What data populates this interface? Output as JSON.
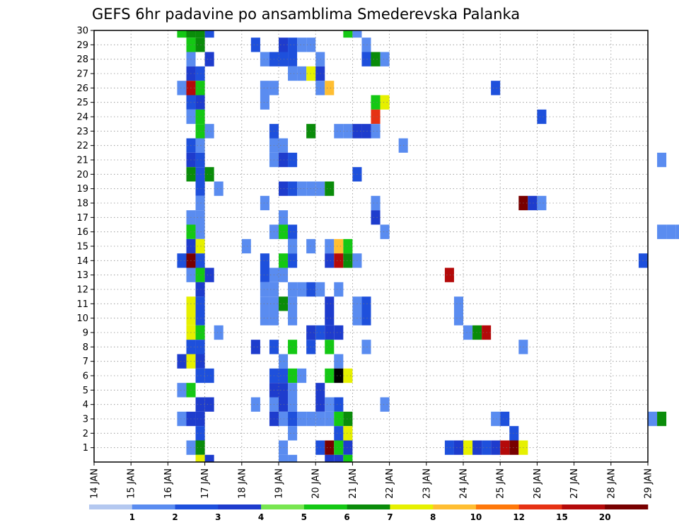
{
  "chart_data": {
    "type": "heatmap",
    "title": "GEFS 6hr padavine po ansamblima Smederevska Palanka",
    "xlabel": "",
    "ylabel": "",
    "x_ticks": [
      "14 JAN",
      "15 JAN",
      "16 JAN",
      "17 JAN",
      "18 JAN",
      "19 JAN",
      "20 JAN",
      "21 JAN",
      "22 JAN",
      "23 JAN",
      "24 JAN",
      "25 JAN",
      "26 JAN",
      "27 JAN",
      "28 JAN",
      "29 JAN"
    ],
    "y_ticks": [
      "1",
      "2",
      "3",
      "4",
      "5",
      "6",
      "7",
      "8",
      "9",
      "10",
      "11",
      "12",
      "13",
      "14",
      "15",
      "16",
      "17",
      "18",
      "19",
      "20",
      "21",
      "22",
      "23",
      "24",
      "25",
      "26",
      "27",
      "28",
      "29",
      "30"
    ],
    "x_range_days": [
      14,
      29
    ],
    "y_range": [
      0,
      30
    ],
    "grid": true,
    "colorbar": {
      "labels": [
        "1",
        "2",
        "3",
        "4",
        "5",
        "6",
        "7",
        "8",
        "10",
        "12",
        "15",
        "20"
      ],
      "colors": [
        "#b4c8f0",
        "#5a8cf0",
        "#1e50dc",
        "#1e3ccd",
        "#78e650",
        "#14c814",
        "#0a8c0a",
        "#e6f000",
        "#ffbe32",
        "#ff780a",
        "#e63214",
        "#b40a0a",
        "#780000"
      ]
    },
    "cells": [
      [
        30,
        16.5,
        6
      ],
      [
        30,
        16.75,
        6
      ],
      [
        30,
        17.0,
        2
      ],
      [
        30,
        16.25,
        5
      ],
      [
        30,
        20.75,
        5
      ],
      [
        30,
        21.0,
        1
      ],
      [
        29,
        16.5,
        5
      ],
      [
        29,
        16.75,
        6
      ],
      [
        29,
        18.25,
        2
      ],
      [
        29,
        19.0,
        3
      ],
      [
        29,
        19.25,
        2
      ],
      [
        29,
        19.5,
        1
      ],
      [
        29,
        19.75,
        1
      ],
      [
        29,
        21.25,
        1
      ],
      [
        28,
        16.5,
        1
      ],
      [
        28,
        17.0,
        3
      ],
      [
        28,
        18.5,
        1
      ],
      [
        28,
        18.75,
        2
      ],
      [
        28,
        19.0,
        2
      ],
      [
        28,
        19.25,
        2
      ],
      [
        28,
        20.0,
        1
      ],
      [
        28,
        21.25,
        2
      ],
      [
        28,
        21.5,
        6
      ],
      [
        28,
        21.75,
        1
      ],
      [
        27,
        16.5,
        3
      ],
      [
        27,
        16.75,
        2
      ],
      [
        27,
        19.25,
        1
      ],
      [
        27,
        19.5,
        1
      ],
      [
        27,
        19.75,
        7
      ],
      [
        27,
        20.0,
        3
      ],
      [
        26,
        16.25,
        1
      ],
      [
        26,
        16.5,
        11
      ],
      [
        26,
        16.75,
        5
      ],
      [
        26,
        18.5,
        1
      ],
      [
        26,
        18.75,
        1
      ],
      [
        26,
        20.0,
        1
      ],
      [
        26,
        20.25,
        8
      ],
      [
        26,
        24.75,
        2
      ],
      [
        25,
        16.5,
        2
      ],
      [
        25,
        16.75,
        3
      ],
      [
        25,
        18.5,
        1
      ],
      [
        25,
        21.5,
        5
      ],
      [
        25,
        21.75,
        7
      ],
      [
        24,
        16.5,
        1
      ],
      [
        24,
        16.75,
        5
      ],
      [
        24,
        21.5,
        10
      ],
      [
        24,
        26.0,
        2
      ],
      [
        23,
        16.75,
        5
      ],
      [
        23,
        17.0,
        1
      ],
      [
        23,
        18.75,
        2
      ],
      [
        23,
        19.75,
        6
      ],
      [
        23,
        20.5,
        1
      ],
      [
        23,
        20.75,
        1
      ],
      [
        23,
        21.0,
        3
      ],
      [
        23,
        21.25,
        3
      ],
      [
        23,
        21.5,
        1
      ],
      [
        22,
        16.5,
        2
      ],
      [
        22,
        16.75,
        1
      ],
      [
        22,
        18.75,
        1
      ],
      [
        22,
        19.0,
        1
      ],
      [
        22,
        22.25,
        1
      ],
      [
        21,
        16.5,
        3
      ],
      [
        21,
        16.75,
        2
      ],
      [
        21,
        18.75,
        1
      ],
      [
        21,
        19.0,
        3
      ],
      [
        21,
        19.25,
        2
      ],
      [
        21,
        29.25,
        1
      ],
      [
        20,
        16.5,
        6
      ],
      [
        20,
        16.75,
        2
      ],
      [
        20,
        17.0,
        6
      ],
      [
        20,
        21.0,
        2
      ],
      [
        19,
        16.75,
        2
      ],
      [
        19,
        17.25,
        1
      ],
      [
        19,
        19.0,
        3
      ],
      [
        19,
        19.25,
        2
      ],
      [
        19,
        19.5,
        1
      ],
      [
        19,
        19.75,
        1
      ],
      [
        19,
        20.0,
        1
      ],
      [
        19,
        20.25,
        6
      ],
      [
        18,
        16.75,
        1
      ],
      [
        18,
        18.5,
        1
      ],
      [
        18,
        21.5,
        1
      ],
      [
        18,
        25.5,
        12
      ],
      [
        18,
        25.75,
        3
      ],
      [
        18,
        26.0,
        1
      ],
      [
        17,
        16.5,
        1
      ],
      [
        17,
        16.75,
        1
      ],
      [
        17,
        19.0,
        1
      ],
      [
        17,
        21.5,
        3
      ],
      [
        16,
        16.5,
        5
      ],
      [
        16,
        16.75,
        1
      ],
      [
        16,
        18.75,
        1
      ],
      [
        16,
        19.0,
        5
      ],
      [
        16,
        19.25,
        2
      ],
      [
        16,
        21.75,
        1
      ],
      [
        16,
        29.25,
        1
      ],
      [
        16,
        29.5,
        1
      ],
      [
        16,
        29.75,
        1
      ],
      [
        15,
        16.5,
        3
      ],
      [
        15,
        16.75,
        7
      ],
      [
        15,
        18.0,
        1
      ],
      [
        15,
        19.25,
        1
      ],
      [
        15,
        19.75,
        1
      ],
      [
        15,
        20.25,
        1
      ],
      [
        15,
        20.5,
        8
      ],
      [
        15,
        20.75,
        5
      ],
      [
        14,
        16.25,
        2
      ],
      [
        14,
        16.5,
        12
      ],
      [
        14,
        16.75,
        2
      ],
      [
        14,
        18.5,
        2
      ],
      [
        14,
        19.0,
        5
      ],
      [
        14,
        19.25,
        2
      ],
      [
        14,
        20.25,
        3
      ],
      [
        14,
        20.5,
        11
      ],
      [
        14,
        20.75,
        6
      ],
      [
        14,
        21.0,
        1
      ],
      [
        14,
        28.75,
        2
      ],
      [
        13,
        16.5,
        1
      ],
      [
        13,
        16.75,
        5
      ],
      [
        13,
        17.0,
        3
      ],
      [
        13,
        18.5,
        2
      ],
      [
        13,
        18.75,
        1
      ],
      [
        13,
        19.0,
        1
      ],
      [
        13,
        23.5,
        11
      ],
      [
        12,
        16.75,
        3
      ],
      [
        12,
        18.5,
        1
      ],
      [
        12,
        18.75,
        1
      ],
      [
        12,
        19.25,
        1
      ],
      [
        12,
        19.5,
        1
      ],
      [
        12,
        19.75,
        2
      ],
      [
        12,
        20.0,
        1
      ],
      [
        12,
        20.5,
        1
      ],
      [
        11,
        16.5,
        7
      ],
      [
        11,
        16.75,
        2
      ],
      [
        11,
        18.5,
        1
      ],
      [
        11,
        18.75,
        1
      ],
      [
        11,
        19.0,
        6
      ],
      [
        11,
        19.25,
        1
      ],
      [
        11,
        20.25,
        3
      ],
      [
        11,
        21.0,
        1
      ],
      [
        11,
        21.25,
        2
      ],
      [
        11,
        23.75,
        1
      ],
      [
        10,
        16.5,
        7
      ],
      [
        10,
        16.75,
        2
      ],
      [
        10,
        18.5,
        1
      ],
      [
        10,
        18.75,
        1
      ],
      [
        10,
        19.25,
        1
      ],
      [
        10,
        20.25,
        3
      ],
      [
        10,
        21.0,
        1
      ],
      [
        10,
        21.25,
        2
      ],
      [
        10,
        23.75,
        1
      ],
      [
        9,
        16.5,
        7
      ],
      [
        9,
        16.75,
        5
      ],
      [
        9,
        17.25,
        1
      ],
      [
        9,
        19.75,
        3
      ],
      [
        9,
        20.0,
        2
      ],
      [
        9,
        20.25,
        3
      ],
      [
        9,
        20.5,
        3
      ],
      [
        9,
        24.0,
        1
      ],
      [
        9,
        24.25,
        6
      ],
      [
        9,
        24.5,
        11
      ],
      [
        8,
        16.5,
        2
      ],
      [
        8,
        16.75,
        2
      ],
      [
        8,
        18.25,
        3
      ],
      [
        8,
        18.75,
        2
      ],
      [
        8,
        19.25,
        5
      ],
      [
        8,
        19.75,
        2
      ],
      [
        8,
        20.25,
        5
      ],
      [
        8,
        21.25,
        1
      ],
      [
        8,
        25.5,
        1
      ],
      [
        7,
        16.25,
        3
      ],
      [
        7,
        16.5,
        7
      ],
      [
        7,
        16.75,
        3
      ],
      [
        7,
        19.0,
        1
      ],
      [
        7,
        20.5,
        1
      ],
      [
        6,
        16.75,
        2
      ],
      [
        6,
        17.0,
        2
      ],
      [
        6,
        18.75,
        2
      ],
      [
        6,
        19.0,
        2
      ],
      [
        6,
        19.25,
        5
      ],
      [
        6,
        19.5,
        1
      ],
      [
        6,
        20.25,
        5
      ],
      [
        6,
        20.5,
        13
      ],
      [
        6,
        20.75,
        7
      ],
      [
        5,
        16.25,
        1
      ],
      [
        5,
        16.5,
        5
      ],
      [
        5,
        18.75,
        3
      ],
      [
        5,
        19.0,
        3
      ],
      [
        5,
        19.25,
        1
      ],
      [
        5,
        20.0,
        3
      ],
      [
        4,
        16.75,
        3
      ],
      [
        4,
        17.0,
        3
      ],
      [
        4,
        18.25,
        1
      ],
      [
        4,
        18.75,
        1
      ],
      [
        4,
        19.0,
        3
      ],
      [
        4,
        19.25,
        1
      ],
      [
        4,
        20.0,
        3
      ],
      [
        4,
        20.25,
        1
      ],
      [
        4,
        20.5,
        2
      ],
      [
        4,
        21.75,
        1
      ],
      [
        3,
        16.25,
        1
      ],
      [
        3,
        16.5,
        3
      ],
      [
        3,
        16.75,
        3
      ],
      [
        3,
        18.75,
        3
      ],
      [
        3,
        19.0,
        1
      ],
      [
        3,
        19.25,
        2
      ],
      [
        3,
        19.5,
        1
      ],
      [
        3,
        19.75,
        1
      ],
      [
        3,
        20.0,
        1
      ],
      [
        3,
        20.25,
        1
      ],
      [
        3,
        20.5,
        5
      ],
      [
        3,
        20.75,
        6
      ],
      [
        3,
        24.75,
        1
      ],
      [
        3,
        25.0,
        2
      ],
      [
        3,
        29.0,
        1
      ],
      [
        3,
        29.25,
        6
      ],
      [
        2,
        16.75,
        2
      ],
      [
        2,
        19.25,
        1
      ],
      [
        2,
        20.5,
        2
      ],
      [
        2,
        20.75,
        7
      ],
      [
        2,
        25.25,
        2
      ],
      [
        1,
        16.5,
        1
      ],
      [
        1,
        16.75,
        6
      ],
      [
        1,
        19.0,
        1
      ],
      [
        1,
        20.0,
        2
      ],
      [
        1,
        20.25,
        12
      ],
      [
        1,
        20.5,
        5
      ],
      [
        1,
        20.75,
        3
      ],
      [
        1,
        23.5,
        2
      ],
      [
        1,
        23.75,
        3
      ],
      [
        1,
        24.0,
        7
      ],
      [
        1,
        24.25,
        3
      ],
      [
        1,
        24.5,
        2
      ],
      [
        1,
        24.75,
        3
      ],
      [
        1,
        25.0,
        11
      ],
      [
        1,
        25.25,
        12
      ],
      [
        1,
        25.5,
        7
      ],
      [
        0,
        16.75,
        7
      ],
      [
        0,
        17.0,
        3
      ],
      [
        0,
        19.0,
        1
      ],
      [
        0,
        19.25,
        1
      ],
      [
        0,
        20.25,
        3
      ],
      [
        0,
        20.5,
        3
      ],
      [
        0,
        20.75,
        5
      ]
    ]
  }
}
